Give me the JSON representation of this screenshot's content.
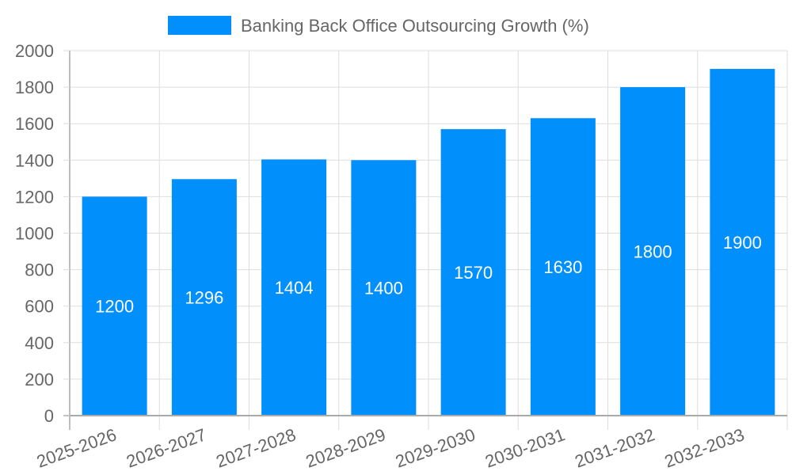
{
  "chart_data": {
    "type": "bar",
    "title": "",
    "legend": [
      "Banking Back Office Outsourcing Growth (%)"
    ],
    "legend_position": "top",
    "categories": [
      "2025-2026",
      "2026-2027",
      "2027-2028",
      "2028-2029",
      "2029-2030",
      "2030-2031",
      "2031-2032",
      "2032-2033"
    ],
    "series": [
      {
        "name": "Banking Back Office Outsourcing Growth (%)",
        "values": [
          1200,
          1296,
          1404,
          1400,
          1570,
          1630,
          1800,
          1900
        ],
        "color": "#008ffb"
      }
    ],
    "xlabel": "",
    "ylabel": "",
    "ylim": [
      0,
      2000
    ],
    "yticks": [
      0,
      200,
      400,
      600,
      800,
      1000,
      1200,
      1400,
      1600,
      1800,
      2000
    ],
    "grid": true,
    "data_labels": true
  },
  "colors": {
    "bar": "#008ffb",
    "grid": "#dddddd",
    "axis": "#aaaaaa",
    "text": "#666666",
    "label": "#ffffff"
  }
}
